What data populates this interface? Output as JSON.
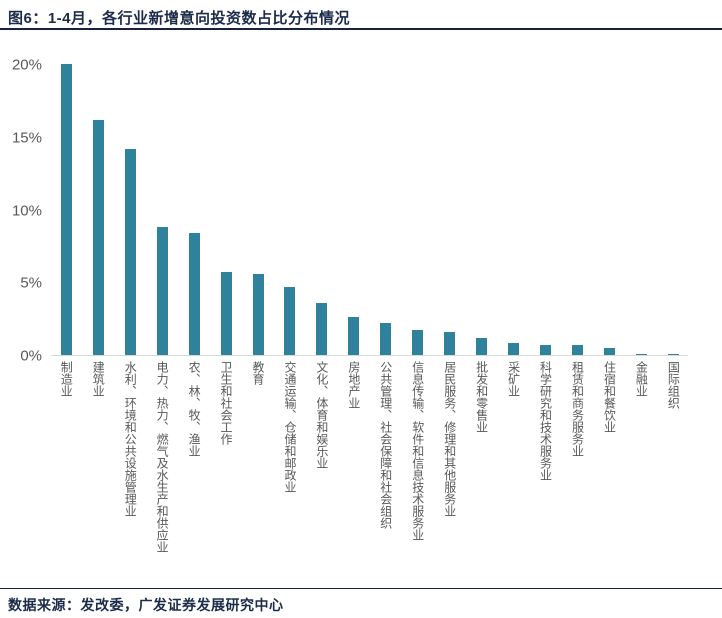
{
  "header": {
    "title": "图6：1-4月，各行业新增意向投资数占比分布情况"
  },
  "footer": {
    "source": "数据来源：发改委，广发证券发展研究中心"
  },
  "colors": {
    "bar": "#2e829c",
    "title_text": "#1b2b49",
    "axis_text": "#595959",
    "baseline": "#d9d9d9",
    "divider": "#17233c"
  },
  "chart_data": {
    "type": "bar",
    "title": "1-4月，各行业新增意向投资数占比分布情况",
    "categories": [
      "制造业",
      "建筑业",
      "水利、环境和公共设施管理业",
      "电力、热力、燃气及水生产和供应业",
      "农、林、牧、渔业",
      "卫生和社会工作",
      "教育",
      "交通运输、仓储和邮政业",
      "文化、体育和娱乐业",
      "房地产业",
      "公共管理、社会保障和社会组织",
      "信息传输、软件和信息技术服务业",
      "居民服务、修理和其他服务业",
      "批发和零售业",
      "采矿业",
      "科学研究和技术服务业",
      "租赁和商务服务业",
      "住宿和餐饮业",
      "金融业",
      "国际组织"
    ],
    "values": [
      20.0,
      16.2,
      14.2,
      8.8,
      8.4,
      5.7,
      5.6,
      4.7,
      3.6,
      2.6,
      2.2,
      1.7,
      1.6,
      1.2,
      0.8,
      0.7,
      0.7,
      0.5,
      0.1,
      0.1
    ],
    "unit": "%",
    "xlabel": "",
    "ylabel": "",
    "ylim": [
      0,
      20
    ],
    "yticks": [
      "0%",
      "5%",
      "10%",
      "15%",
      "20%"
    ],
    "ytick_values": [
      0,
      5,
      10,
      15,
      20
    ],
    "grid": false,
    "legend": false
  }
}
